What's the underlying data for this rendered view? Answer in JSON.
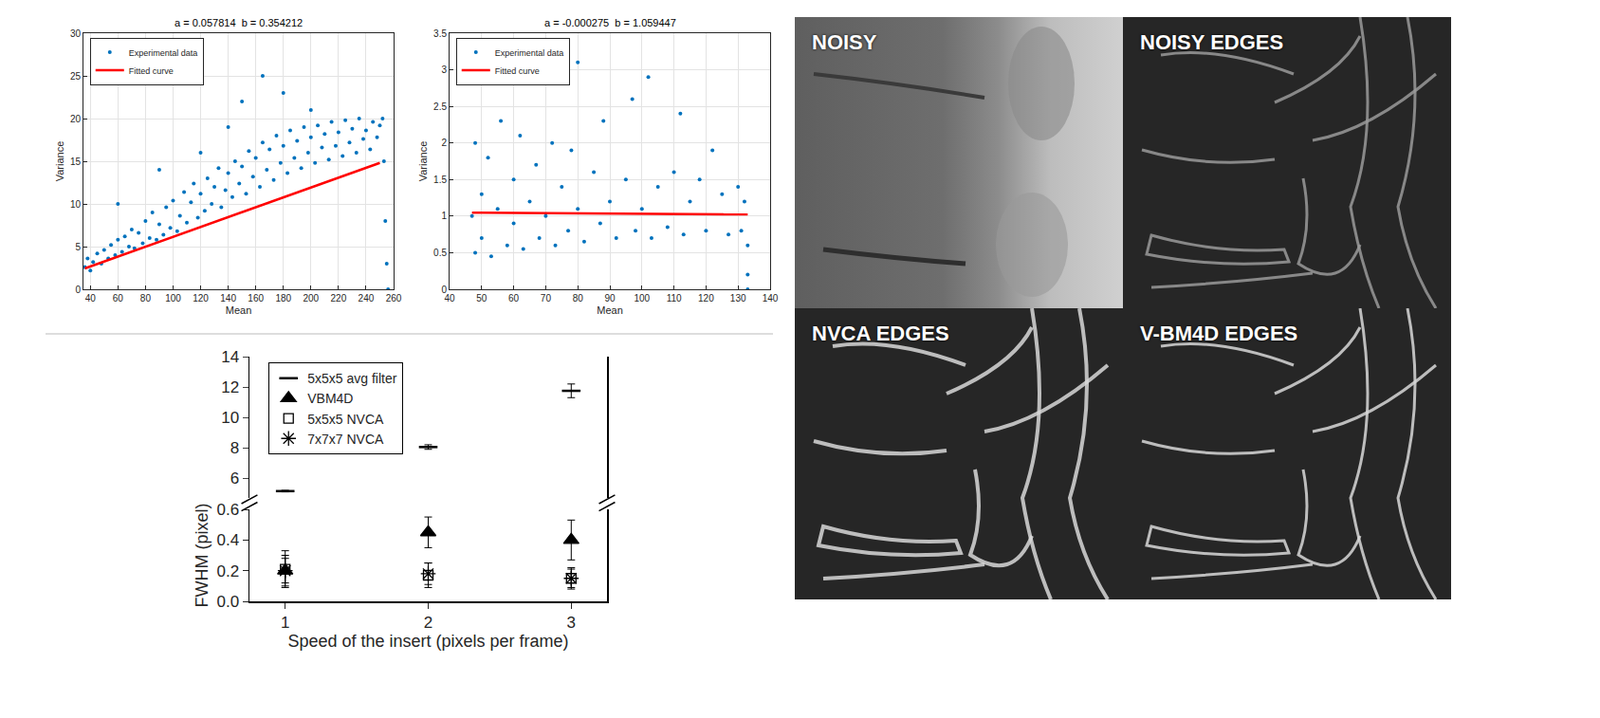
{
  "chart_data": [
    {
      "type": "scatter",
      "title": "a = 0.057814  b = 0.354212",
      "x_label": "Mean",
      "y_label": "Variance",
      "xlim": [
        35,
        260
      ],
      "xticks": [
        40,
        60,
        80,
        100,
        120,
        140,
        160,
        180,
        200,
        220,
        240,
        260
      ],
      "ylim": [
        0,
        30
      ],
      "yticks": [
        0,
        5,
        10,
        15,
        20,
        25,
        30
      ],
      "grid": true,
      "legend": "upper left",
      "series": [
        {
          "name": "Experimental data",
          "type": "scatter",
          "color": "#0072bd",
          "marker": "dot",
          "x": [
            36,
            38,
            40,
            42,
            45,
            48,
            50,
            53,
            55,
            58,
            60,
            60,
            63,
            65,
            68,
            70,
            72,
            75,
            78,
            80,
            83,
            85,
            88,
            90,
            90,
            93,
            95,
            98,
            100,
            103,
            105,
            108,
            110,
            113,
            115,
            118,
            120,
            120,
            123,
            125,
            128,
            130,
            133,
            135,
            138,
            140,
            140,
            143,
            145,
            148,
            150,
            150,
            153,
            155,
            158,
            160,
            163,
            165,
            165,
            168,
            170,
            173,
            175,
            178,
            180,
            180,
            183,
            185,
            188,
            190,
            193,
            195,
            198,
            200,
            200,
            203,
            205,
            208,
            210,
            213,
            215,
            218,
            220,
            223,
            225,
            228,
            230,
            233,
            235,
            238,
            240,
            243,
            245,
            248,
            250,
            252,
            253,
            254,
            255,
            256
          ],
          "values": [
            2.6,
            3.6,
            2.2,
            3.2,
            4.2,
            3.0,
            4.6,
            3.6,
            5.2,
            4.0,
            5.8,
            10.0,
            4.4,
            6.2,
            5.0,
            7.0,
            4.8,
            6.6,
            5.4,
            8.0,
            6.0,
            9.0,
            5.8,
            7.6,
            14.0,
            6.4,
            9.6,
            7.2,
            10.4,
            6.8,
            8.6,
            11.4,
            7.8,
            10.2,
            12.4,
            8.4,
            11.2,
            16.0,
            9.2,
            13.0,
            10.0,
            12.0,
            14.2,
            9.6,
            11.6,
            13.6,
            19.0,
            10.8,
            15.0,
            12.4,
            14.4,
            22.0,
            11.2,
            16.2,
            13.2,
            15.4,
            12.0,
            17.2,
            25.0,
            14.0,
            16.4,
            12.8,
            18.0,
            14.8,
            16.8,
            23.0,
            13.6,
            18.6,
            15.4,
            17.4,
            14.2,
            19.0,
            16.0,
            17.8,
            21.0,
            14.8,
            19.2,
            16.6,
            18.2,
            15.2,
            19.6,
            16.8,
            18.4,
            15.6,
            19.8,
            17.2,
            18.8,
            16.0,
            20.0,
            17.6,
            18.6,
            16.4,
            19.6,
            17.8,
            19.2,
            20.0,
            15.0,
            8.0,
            3.0,
            0.0
          ]
        },
        {
          "name": "Fitted curve",
          "type": "line",
          "color": "#ff0000",
          "line_style": "solid",
          "x": [
            36,
            250
          ],
          "values": [
            2.44,
            14.81
          ]
        }
      ]
    },
    {
      "type": "scatter",
      "title": "a = -0.000275  b = 1.059447",
      "x_label": "Mean",
      "y_label": "Variance",
      "xlim": [
        40,
        140
      ],
      "xticks": [
        40,
        50,
        60,
        70,
        80,
        90,
        100,
        110,
        120,
        130,
        140
      ],
      "ylim": [
        0,
        3.5
      ],
      "yticks": [
        0,
        0.5,
        1,
        1.5,
        2,
        2.5,
        3,
        3.5
      ],
      "grid": true,
      "legend": "upper left",
      "series": [
        {
          "name": "Experimental data",
          "type": "scatter",
          "color": "#0072bd",
          "marker": "dot",
          "x": [
            47,
            48,
            48,
            50,
            50,
            52,
            53,
            55,
            56,
            58,
            60,
            60,
            62,
            63,
            65,
            67,
            68,
            70,
            72,
            73,
            75,
            77,
            78,
            80,
            80,
            82,
            85,
            87,
            88,
            90,
            92,
            95,
            97,
            98,
            100,
            102,
            103,
            105,
            108,
            110,
            112,
            113,
            115,
            118,
            120,
            122,
            125,
            127,
            130,
            131,
            132,
            133,
            133,
            133
          ],
          "values": [
            1.0,
            0.5,
            2.0,
            1.3,
            0.7,
            1.8,
            0.45,
            1.1,
            2.3,
            0.6,
            1.5,
            0.9,
            2.1,
            0.55,
            1.2,
            1.7,
            0.7,
            1.0,
            2.0,
            0.6,
            1.4,
            0.8,
            1.9,
            3.1,
            1.1,
            0.65,
            1.6,
            0.9,
            2.3,
            1.2,
            0.7,
            1.5,
            2.6,
            0.8,
            1.1,
            2.9,
            0.7,
            1.4,
            0.85,
            1.6,
            2.4,
            0.75,
            1.2,
            1.5,
            0.8,
            1.9,
            1.3,
            0.75,
            1.4,
            0.8,
            1.2,
            0.6,
            0.2,
            0.0
          ]
        },
        {
          "name": "Fitted curve",
          "type": "line",
          "color": "#ff0000",
          "line_style": "solid",
          "x": [
            47,
            133
          ],
          "values": [
            1.0465,
            1.0229
          ]
        }
      ]
    },
    {
      "type": "scatter",
      "x_label": "Speed of the insert (pixels per frame)",
      "y_label": "FWHM (pixel)",
      "x": [
        1,
        2,
        3
      ],
      "xlim": [
        0.75,
        3.25
      ],
      "xticks": [
        1,
        2,
        3
      ],
      "ylim": [
        0,
        0.6
      ],
      "yticks": [
        {
          "value": 0,
          "label": "0.0"
        },
        0.2,
        0.4,
        0.6
      ],
      "y2lim": [
        4.7,
        14
      ],
      "y2ticks": [
        6,
        8,
        10,
        12,
        14
      ],
      "grid": false,
      "legend": "upper left",
      "series": [
        {
          "name": "5x5x5 avg filter",
          "color": "#000000",
          "marker": "dash",
          "axis": "y2",
          "values": [
            5.15,
            8.05,
            11.75
          ],
          "errors": [
            0.05,
            0.15,
            0.45
          ]
        },
        {
          "name": "VBM4D",
          "color": "#000000",
          "marker": "triangle",
          "values": [
            0.2,
            0.45,
            0.4
          ],
          "errors": [
            0.1,
            0.1,
            0.13
          ]
        },
        {
          "name": "5x5x5 NVCA",
          "color": "#000000",
          "marker": "square-open",
          "values": [
            0.21,
            0.17,
            0.15
          ],
          "errors": [
            0.12,
            0.08,
            0.07
          ]
        },
        {
          "name": "7x7x7 NVCA",
          "color": "#000000",
          "marker": "asterisk",
          "values": [
            0.2,
            0.18,
            0.15
          ],
          "errors": [
            0.08,
            0.07,
            0.06
          ]
        }
      ]
    }
  ],
  "panels": [
    {
      "label": "NOISY"
    },
    {
      "label": "NOISY EDGES"
    },
    {
      "label": "NVCA EDGES"
    },
    {
      "label": "V-BM4D EDGES"
    }
  ]
}
